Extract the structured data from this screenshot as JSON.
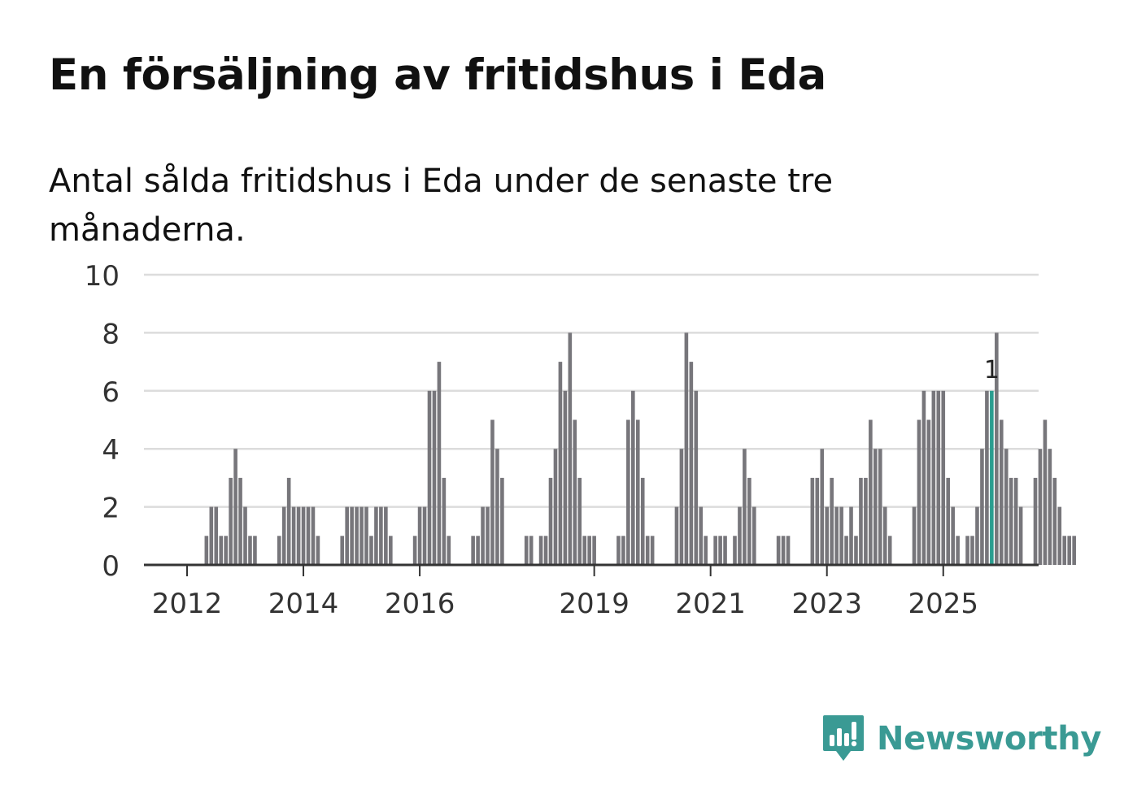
{
  "title": "En försäljning av fritidshus i Eda",
  "subtitle": "Antal sålda fritidshus i Eda under de senaste tre månaderna.",
  "brand": {
    "name": "Newsworthy",
    "icon": "newsworthy-logo-icon",
    "color": "#3a9a94"
  },
  "chart_data": {
    "type": "bar",
    "title": "En försäljning av fritidshus i Eda",
    "subtitle": "Antal sålda fritidshus i Eda under de senaste tre månaderna.",
    "xlabel": "",
    "ylabel": "",
    "ylim": [
      0,
      10
    ],
    "yticks": [
      0,
      2,
      4,
      6,
      8,
      10
    ],
    "grid": true,
    "colors": {
      "bar": "#77767b",
      "highlight": "#2a9d8f",
      "grid": "#dcdcdc",
      "axis": "#333333"
    },
    "xticks": [
      {
        "label": "2012",
        "index": 0
      },
      {
        "label": "2014",
        "index": 24
      },
      {
        "label": "2016",
        "index": 48
      },
      {
        "label": "2019",
        "index": 84
      },
      {
        "label": "2021",
        "index": 108
      },
      {
        "label": "2023",
        "index": 132
      },
      {
        "label": "2025",
        "index": 156
      }
    ],
    "annotation": {
      "label": "1",
      "index": 166
    },
    "values": [
      0,
      0,
      0,
      0,
      1,
      2,
      2,
      1,
      1,
      3,
      4,
      3,
      2,
      1,
      1,
      0,
      0,
      0,
      0,
      1,
      2,
      3,
      2,
      2,
      2,
      2,
      2,
      1,
      0,
      0,
      0,
      0,
      1,
      2,
      2,
      2,
      2,
      2,
      1,
      2,
      2,
      2,
      1,
      0,
      0,
      0,
      0,
      1,
      2,
      2,
      6,
      6,
      7,
      3,
      1,
      0,
      0,
      0,
      0,
      1,
      1,
      2,
      2,
      5,
      4,
      3,
      0,
      0,
      0,
      0,
      1,
      1,
      0,
      1,
      1,
      3,
      4,
      7,
      6,
      8,
      5,
      3,
      1,
      1,
      1,
      0,
      0,
      0,
      0,
      1,
      1,
      5,
      6,
      5,
      3,
      1,
      1,
      0,
      0,
      0,
      0,
      2,
      4,
      8,
      7,
      6,
      2,
      1,
      0,
      1,
      1,
      1,
      0,
      1,
      2,
      4,
      3,
      2,
      0,
      0,
      0,
      0,
      1,
      1,
      1,
      0,
      0,
      0,
      0,
      3,
      3,
      4,
      2,
      3,
      2,
      2,
      1,
      2,
      1,
      3,
      3,
      5,
      4,
      4,
      2,
      1,
      0,
      0,
      0,
      0,
      2,
      5,
      6,
      5,
      6,
      6,
      6,
      3,
      2,
      1,
      0,
      1,
      1,
      2,
      4,
      6,
      6,
      8,
      5,
      4,
      3,
      3,
      2,
      0,
      0,
      3,
      4,
      5,
      4,
      3,
      2,
      1,
      1,
      1
    ]
  }
}
